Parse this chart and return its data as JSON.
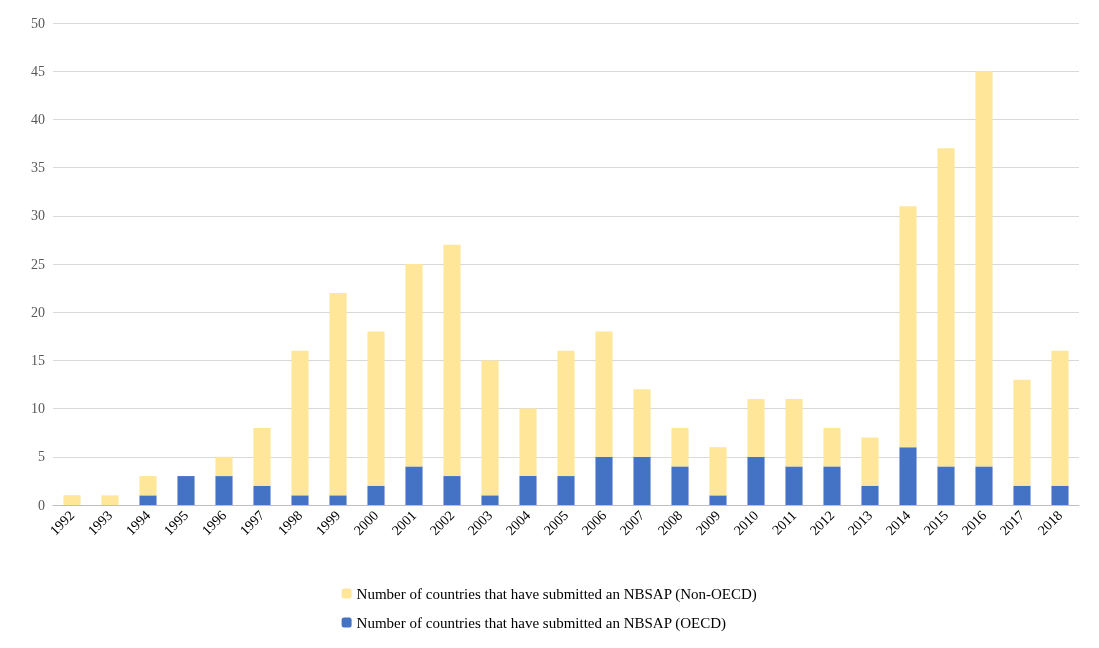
{
  "chart_data": {
    "type": "bar",
    "stacked": true,
    "categories": [
      "1992",
      "1993",
      "1994",
      "1995",
      "1996",
      "1997",
      "1998",
      "1999",
      "2000",
      "2001",
      "2002",
      "2003",
      "2004",
      "2005",
      "2006",
      "2007",
      "2008",
      "2009",
      "2010",
      "2011",
      "2012",
      "2013",
      "2014",
      "2015",
      "2016",
      "2017",
      "2018"
    ],
    "series": [
      {
        "name": "Number of countries that have submitted an NBSAP (OECD)",
        "color": "#4472c4",
        "values": [
          0,
          0,
          1,
          3,
          3,
          2,
          1,
          1,
          2,
          4,
          3,
          1,
          3,
          3,
          5,
          5,
          4,
          1,
          5,
          4,
          4,
          2,
          6,
          4,
          4,
          2,
          2
        ]
      },
      {
        "name": "Number of countries that have submitted an NBSAP (Non-OECD)",
        "color": "#ffe699",
        "values": [
          1,
          1,
          2,
          0,
          2,
          6,
          15,
          21,
          16,
          21,
          24,
          14,
          7,
          13,
          13,
          7,
          4,
          5,
          6,
          7,
          4,
          5,
          25,
          33,
          41,
          11,
          14
        ]
      }
    ],
    "ylim": [
      0,
      50
    ],
    "yticks": [
      0,
      5,
      10,
      15,
      20,
      25,
      30,
      35,
      40,
      45,
      50
    ],
    "grid": "y",
    "legend": "bottom"
  }
}
